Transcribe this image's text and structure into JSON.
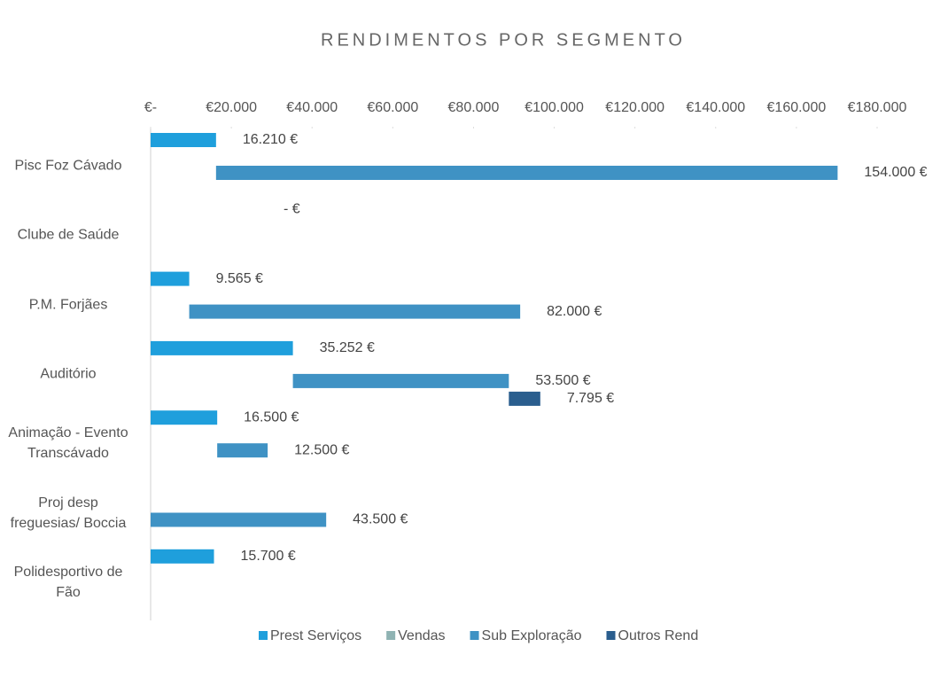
{
  "chart_data": {
    "type": "bar",
    "orientation": "horizontal",
    "stacked": true,
    "title": "RENDIMENTOS POR SEGMENTO",
    "categories": [
      "Pisc Foz Cávado",
      "Clube de Saúde",
      "P.M. Forjães",
      "Auditório",
      "Animação - Evento Transcávado",
      "Proj desp freguesias/ Boccia",
      "Polidesportivo de Fão"
    ],
    "series": [
      {
        "name": "Prest Serviços",
        "color": "#1f9fdc",
        "values": [
          16210,
          0,
          9565,
          35252,
          16500,
          null,
          15700
        ],
        "value_labels": [
          "16.210 €",
          "-  €",
          "9.565 €",
          "35.252 €",
          "16.500 €",
          null,
          "15.700 €"
        ]
      },
      {
        "name": "Vendas",
        "color": "#8fb3b3",
        "values": [
          null,
          null,
          null,
          null,
          null,
          null,
          null
        ]
      },
      {
        "name": "Sub Exploração",
        "color": "#3f92c4",
        "values": [
          154000,
          null,
          82000,
          53500,
          12500,
          43500,
          null
        ],
        "value_labels": [
          "154.000 €",
          null,
          "82.000 €",
          "53.500 €",
          "12.500 €",
          "43.500 €",
          null
        ]
      },
      {
        "name": "Outros Rend",
        "color": "#2a5e8e",
        "values": [
          0,
          null,
          null,
          7795,
          null,
          null,
          null
        ],
        "value_labels": [
          "-  €",
          null,
          null,
          "7.795 €",
          null,
          null,
          null
        ]
      }
    ],
    "xlim": [
      0,
      180000
    ],
    "xticks": [
      {
        "value": 0,
        "label": "€-"
      },
      {
        "value": 20000,
        "label": "€20.000"
      },
      {
        "value": 40000,
        "label": "€40.000"
      },
      {
        "value": 60000,
        "label": "€60.000"
      },
      {
        "value": 80000,
        "label": "€80.000"
      },
      {
        "value": 100000,
        "label": "€100.000"
      },
      {
        "value": 120000,
        "label": "€120.000"
      },
      {
        "value": 140000,
        "label": "€140.000"
      },
      {
        "value": 160000,
        "label": "€160.000"
      },
      {
        "value": 180000,
        "label": "€180.000"
      }
    ],
    "legend": "bottom"
  }
}
